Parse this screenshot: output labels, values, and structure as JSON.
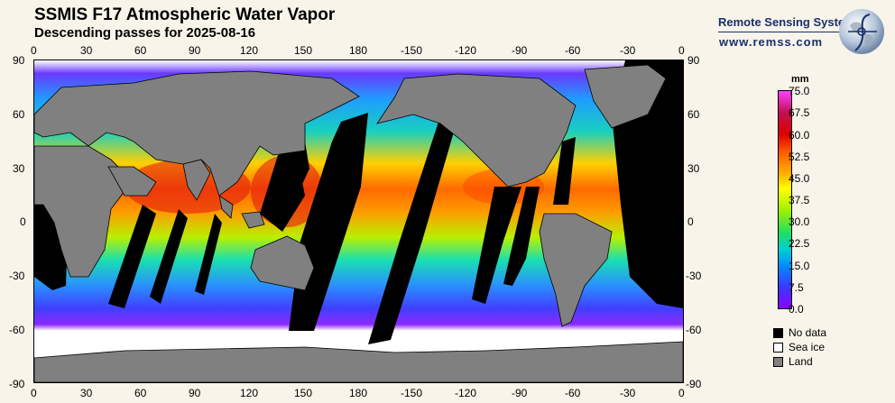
{
  "header": {
    "title": "SSMIS F17 Atmospheric Water Vapor",
    "subtitle": "Descending passes for 2025-08-16"
  },
  "branding": {
    "name": "Remote Sensing Systems",
    "url": "www.remss.com"
  },
  "map": {
    "top_lon_labels": [
      "0",
      "30",
      "60",
      "90",
      "120",
      "150",
      "180",
      "-150",
      "-120",
      "-90",
      "-60",
      "-30",
      "0"
    ],
    "bottom_lon_labels": [
      "0",
      "30",
      "60",
      "90",
      "120",
      "150",
      "180",
      "-150",
      "-120",
      "-90",
      "-60",
      "-30",
      "0"
    ],
    "left_lat_labels": [
      "90",
      "60",
      "30",
      "0",
      "-30",
      "-60",
      "-90"
    ],
    "right_lat_labels": [
      "90",
      "60",
      "30",
      "0",
      "-30",
      "-60",
      "-90"
    ]
  },
  "colorbar": {
    "unit": "mm",
    "ticks": [
      "75.0",
      "67.5",
      "60.0",
      "52.5",
      "45.0",
      "37.5",
      "30.0",
      "22.5",
      "15.0",
      "7.5",
      "0.0"
    ]
  },
  "legend": [
    {
      "label": "No data",
      "color": "#000000"
    },
    {
      "label": "Sea ice",
      "color": "#ffffff"
    },
    {
      "label": "Land",
      "color": "#808080"
    }
  ],
  "colors": {
    "land": "#808080",
    "no_data": "#000000",
    "sea_ice": "#ffffff"
  }
}
